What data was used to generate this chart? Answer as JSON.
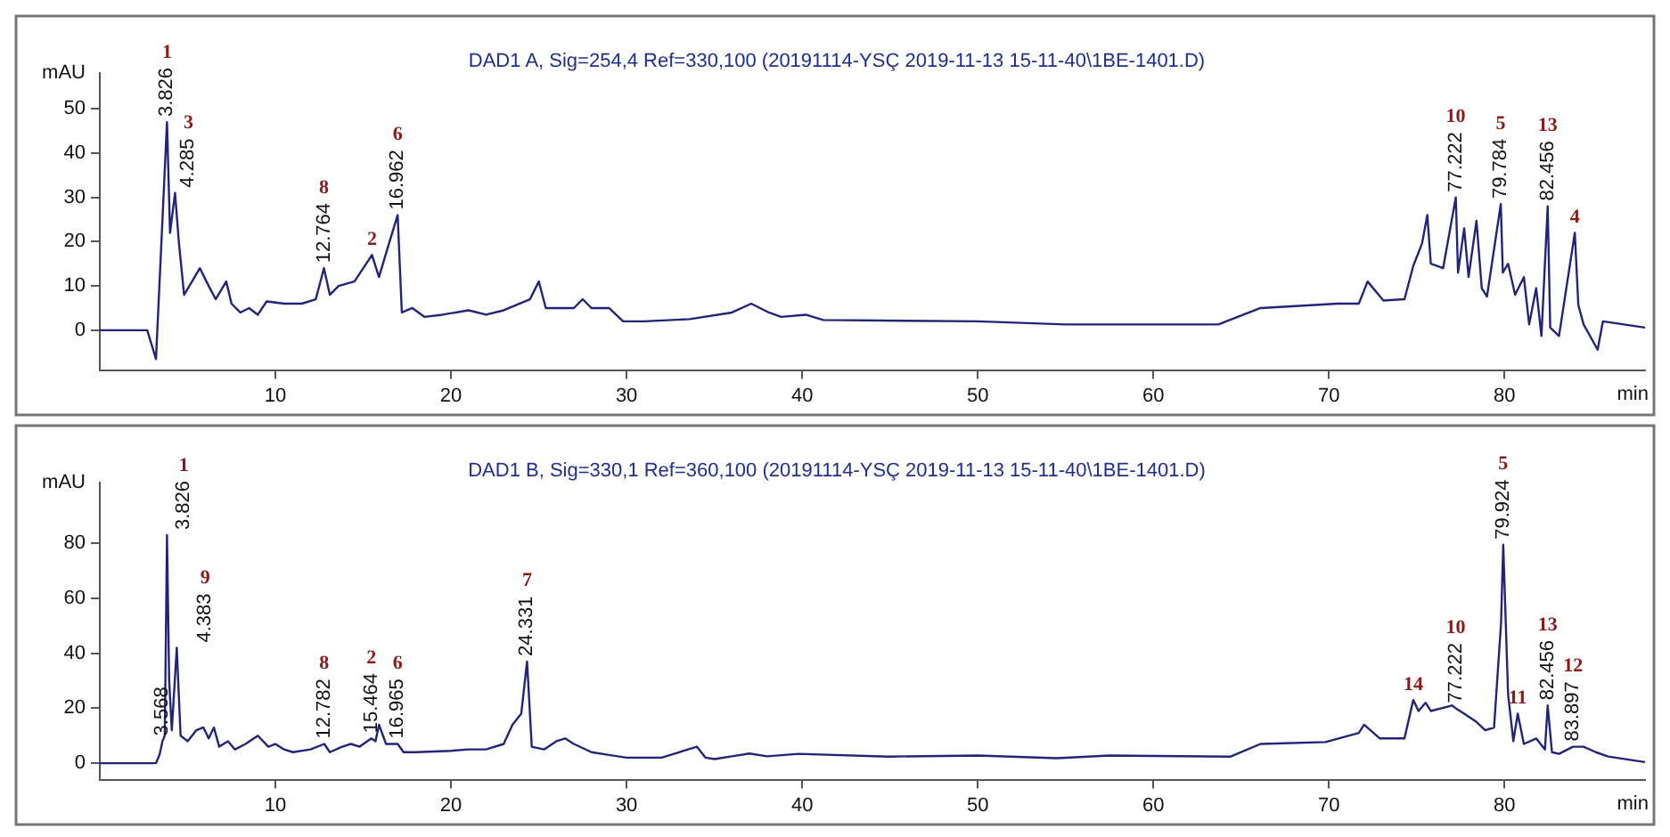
{
  "chart_data": [
    {
      "type": "line",
      "title": "DAD1 A, Sig=254,4 Ref=330,100 (20191114-YSÇ 2019-11-13 15-11-40\\1BE-1401.D)",
      "ylabel": "mAU",
      "xlabel": "min",
      "marker": "none",
      "xlim": [
        0,
        88
      ],
      "xticks": [
        10,
        20,
        30,
        40,
        50,
        60,
        70,
        80
      ],
      "ylim": [
        -9,
        58
      ],
      "yticks": [
        0,
        10,
        20,
        30,
        40,
        50
      ],
      "x": [
        0,
        2.7,
        3.2,
        3.826,
        4.0,
        4.285,
        4.5,
        4.8,
        5.4,
        5.7,
        6.2,
        6.6,
        7.2,
        7.5,
        8,
        8.5,
        9,
        9.5,
        10.5,
        11.5,
        12.3,
        12.764,
        13.1,
        13.6,
        14.5,
        15.5,
        15.9,
        16.5,
        16.962,
        17.2,
        17.8,
        18.5,
        19.5,
        21,
        22,
        23,
        24.5,
        25,
        25.4,
        27,
        27.5,
        28,
        29,
        29.8,
        31,
        33.6,
        36,
        37.1,
        38.1,
        38.8,
        40.2,
        41.2,
        50,
        55,
        63.7,
        66.1,
        70.5,
        71.7,
        72.2,
        73.1,
        74.3,
        74.8,
        75.3,
        75.6,
        75.8,
        76.5,
        77.222,
        77.35,
        77.7,
        77.95,
        78.4,
        78.7,
        79,
        79.784,
        79.9,
        80.2,
        80.6,
        81.1,
        81.4,
        81.8,
        82.1,
        82.456,
        82.6,
        83.1,
        84.0,
        84.2,
        84.5,
        85.3,
        85.6,
        88
      ],
      "series": [
        {
          "color": "#23237a",
          "values": [
            0,
            0,
            -6.5,
            47,
            22,
            31,
            20,
            8,
            12,
            14,
            10,
            7,
            11,
            6,
            4,
            5,
            3.5,
            6.5,
            6,
            6,
            7,
            14,
            8,
            10,
            11,
            17,
            12,
            20,
            26,
            4,
            5,
            3,
            3.5,
            4.5,
            3.5,
            4.5,
            7,
            11,
            5,
            5,
            7,
            5,
            5,
            2,
            2,
            2.5,
            4,
            6,
            4,
            3,
            3.5,
            2.3,
            2,
            1.3,
            1.3,
            5,
            6,
            6,
            11,
            6.7,
            7,
            14.5,
            19.6,
            26,
            15,
            14,
            30,
            13,
            23,
            12,
            24.7,
            9.5,
            7.6,
            28.5,
            13,
            15,
            8,
            12,
            1.3,
            9.5,
            -1.3,
            28,
            0.6,
            -1.3,
            22,
            5.7,
            1.3,
            -4.4,
            2,
            0.6
          ]
        }
      ],
      "annotations": [
        {
          "text": "3.826",
          "x": 3.826,
          "y": 47
        },
        "1",
        {
          "text": "4.285",
          "x": 4.285,
          "y": 31
        },
        "3",
        {
          "text": "12.764",
          "x": 12.764,
          "y": 14
        },
        "8",
        {
          "text": "2",
          "x": 15.5,
          "y": 17
        },
        {
          "text": "16.962",
          "x": 16.962,
          "y": 26
        },
        "6",
        {
          "text": "77.222",
          "x": 77.222,
          "y": 30
        },
        "10",
        {
          "text": "79.784",
          "x": 79.784,
          "y": 28.5
        },
        "5",
        {
          "text": "82.456",
          "x": 82.456,
          "y": 28
        },
        "13",
        {
          "text": "4",
          "x": 84.0,
          "y": 22
        }
      ]
    },
    {
      "type": "line",
      "title": "DAD1 B, Sig=330,1 Ref=360,100 (20191114-YSÇ 2019-11-13 15-11-40\\1BE-1401.D)",
      "ylabel": "mAU",
      "xlabel": "min",
      "marker": "none",
      "xlim": [
        0,
        88
      ],
      "xticks": [
        10,
        20,
        30,
        40,
        50,
        60,
        70,
        80
      ],
      "ylim": [
        -6,
        102
      ],
      "yticks": [
        0,
        20,
        40,
        60,
        80
      ],
      "x": [
        0,
        3.2,
        3.4,
        3.568,
        3.7,
        3.826,
        3.95,
        4.1,
        4.383,
        4.6,
        5,
        5.5,
        5.9,
        6.2,
        6.5,
        6.8,
        7.3,
        7.7,
        8.3,
        9,
        9.6,
        10,
        10.5,
        11,
        12,
        12.782,
        13.1,
        13.8,
        14.3,
        14.8,
        15.464,
        15.7,
        15.9,
        16.3,
        16.965,
        17.3,
        18,
        20,
        21,
        22,
        23,
        23.5,
        24,
        24.331,
        24.6,
        25.3,
        26,
        26.5,
        27,
        28,
        29,
        30,
        32,
        33.5,
        34,
        34.5,
        35,
        36,
        37,
        38,
        39.8,
        44.9,
        50,
        54.5,
        57.5,
        64.4,
        66.1,
        69.8,
        71.7,
        72,
        72.9,
        74.3,
        74.8,
        75.1,
        75.5,
        75.8,
        77,
        77.222,
        77.7,
        78.4,
        78.9,
        79.4,
        79.8,
        79.924,
        80.2,
        80.5,
        80.75,
        81.1,
        81.8,
        82.3,
        82.456,
        82.7,
        83.1,
        83.897,
        84.5,
        85.2,
        85.9,
        88
      ],
      "series": [
        {
          "color": "#23237a",
          "values": [
            0,
            0,
            3,
            8,
            10,
            83,
            30,
            12,
            42,
            10,
            8,
            12,
            13,
            9,
            13,
            6,
            8,
            5,
            7,
            10,
            6,
            7,
            5,
            4,
            5,
            7,
            4,
            6,
            7,
            6,
            9,
            8,
            14,
            7,
            7,
            4,
            4,
            4.5,
            5,
            5,
            7,
            14,
            18,
            37,
            6,
            5,
            8,
            9,
            7,
            4,
            3,
            2,
            2,
            5,
            6,
            2,
            1.5,
            2.5,
            3.5,
            2.5,
            3.4,
            2.4,
            2.8,
            1.8,
            2.8,
            2.4,
            7,
            7.7,
            11,
            14,
            9,
            9,
            23,
            19,
            22,
            19,
            21,
            20,
            18,
            15,
            12,
            13,
            51,
            79.5,
            25,
            8,
            18,
            7,
            9,
            5,
            21,
            4,
            3.4,
            6,
            6,
            4,
            2.4,
            0.4
          ]
        }
      ],
      "annotations": [
        {
          "text": "3.568",
          "x": 3.568,
          "y": 8
        },
        {
          "text": "3.826",
          "x": 3.826,
          "y": 83
        },
        "1",
        {
          "text": "4.383",
          "x": 4.383,
          "y": 42
        },
        "9",
        {
          "text": "12.782",
          "x": 12.782,
          "y": 7
        },
        "8",
        {
          "text": "15.464",
          "x": 15.464,
          "y": 9
        },
        "2",
        {
          "text": "16.965",
          "x": 16.965,
          "y": 7
        },
        "6",
        {
          "text": "24.331",
          "x": 24.331,
          "y": 37
        },
        "7",
        {
          "text": "14",
          "x": 74.8,
          "y": 23
        },
        {
          "text": "77.222",
          "x": 77.222,
          "y": 20
        },
        "10",
        {
          "text": "79.924",
          "x": 79.924,
          "y": 79.5
        },
        "5",
        {
          "text": "11",
          "x": 80.75,
          "y": 18
        },
        {
          "text": "82.456",
          "x": 82.456,
          "y": 21
        },
        "13",
        {
          "text": "83.897",
          "x": 83.897,
          "y": 6
        },
        "12"
      ]
    }
  ]
}
